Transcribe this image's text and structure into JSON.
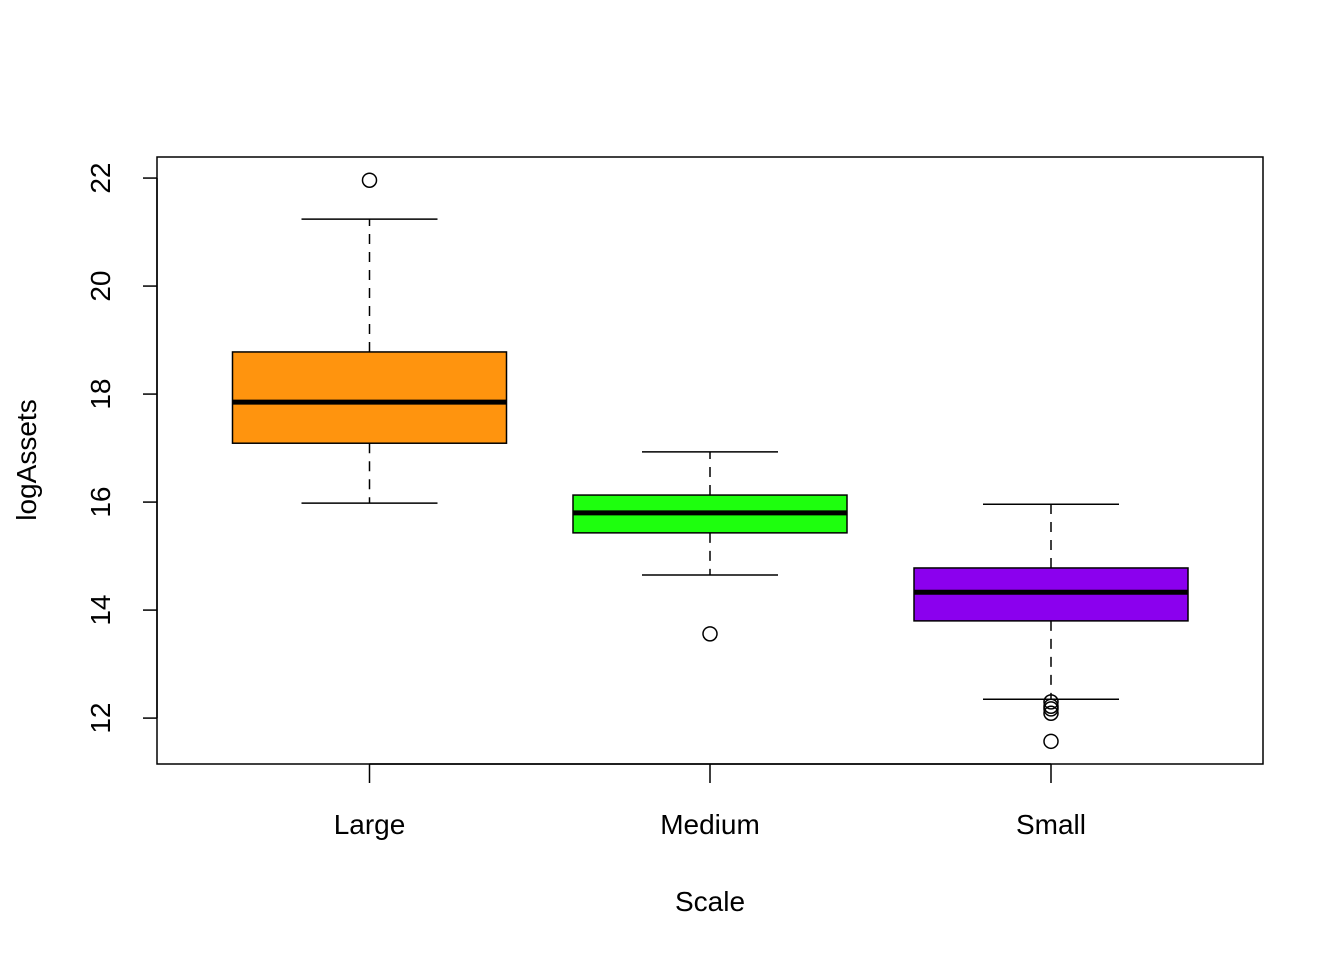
{
  "chart_data": {
    "type": "boxplot",
    "title": "",
    "xlabel": "Scale",
    "ylabel": "logAssets",
    "ylim": [
      11.15,
      22.39
    ],
    "yticks": [
      12,
      14,
      16,
      18,
      20,
      22
    ],
    "grid": false,
    "categories": [
      "Large",
      "Medium",
      "Small"
    ],
    "boxes": [
      {
        "category": "Large",
        "color": "#FF940E",
        "lower_whisker": 15.98,
        "q1": 17.09,
        "median": 17.85,
        "q3": 18.78,
        "upper_whisker": 21.24,
        "outliers": [
          21.96
        ]
      },
      {
        "category": "Medium",
        "color": "#1EFF0E",
        "lower_whisker": 14.65,
        "q1": 15.43,
        "median": 15.8,
        "q3": 16.13,
        "upper_whisker": 16.93,
        "outliers": [
          13.56
        ]
      },
      {
        "category": "Small",
        "color": "#8B00EE",
        "lower_whisker": 12.35,
        "q1": 13.8,
        "median": 14.33,
        "q3": 14.78,
        "upper_whisker": 15.96,
        "outliers": [
          12.3,
          12.22,
          12.17,
          12.09,
          11.57
        ]
      }
    ]
  }
}
